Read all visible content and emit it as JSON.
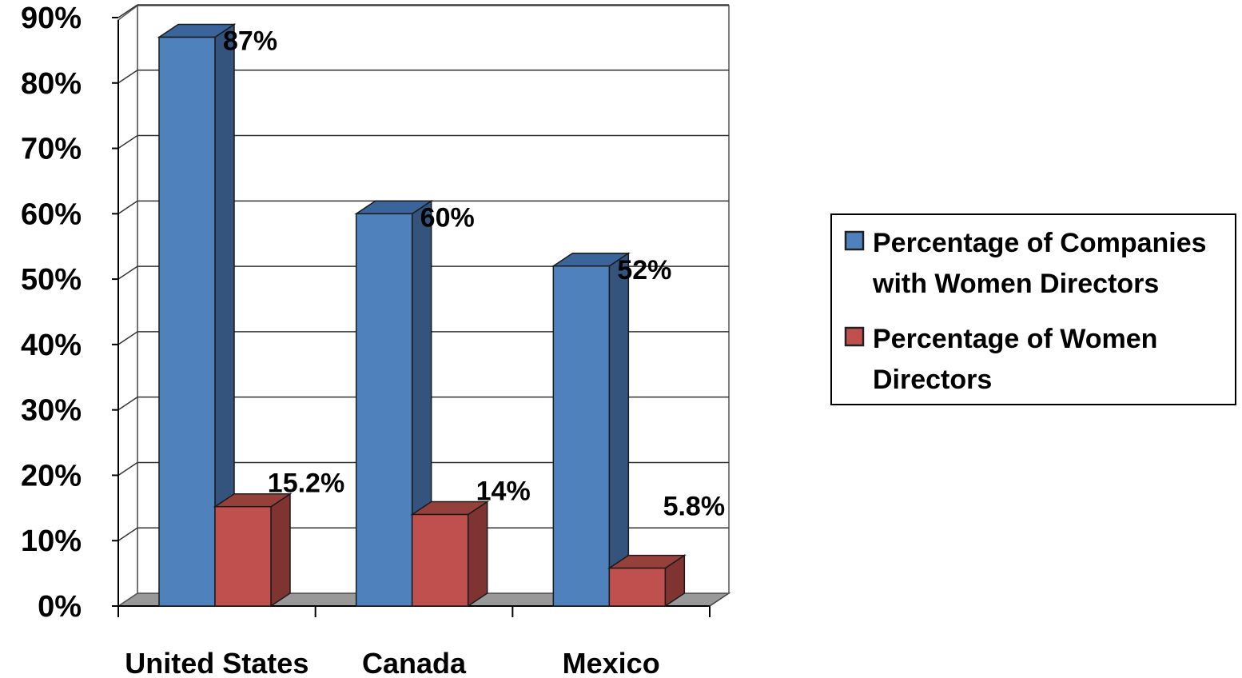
{
  "chart_data": {
    "type": "bar",
    "title": "",
    "xlabel": "",
    "ylabel": "",
    "ylim": [
      0,
      90
    ],
    "yticks": [
      "0%",
      "10%",
      "20%",
      "30%",
      "40%",
      "50%",
      "60%",
      "70%",
      "80%",
      "90%"
    ],
    "categories": [
      "United States",
      "Canada",
      "Mexico"
    ],
    "series": [
      {
        "name": "Percentage of Companies with Women Directors",
        "values": [
          87,
          60,
          52
        ],
        "labels": [
          "87%",
          "60%",
          "52%"
        ],
        "color": "#4f81bd",
        "side_color": "#34547e",
        "top_color": "#3b649a"
      },
      {
        "name": "Percentage of Women Directors",
        "values": [
          15.2,
          14,
          5.8
        ],
        "labels": [
          "15.2%",
          "14%",
          "5.8%"
        ],
        "color": "#c0504d",
        "side_color": "#7f3432",
        "top_color": "#96403c"
      }
    ],
    "legend": {
      "position": "right",
      "lines": [
        [
          "Percentage of Companies",
          "with Women Directors"
        ],
        [
          "Percentage of Women",
          "Directors"
        ]
      ]
    },
    "grid": true,
    "style": "3d-clustered-column"
  }
}
